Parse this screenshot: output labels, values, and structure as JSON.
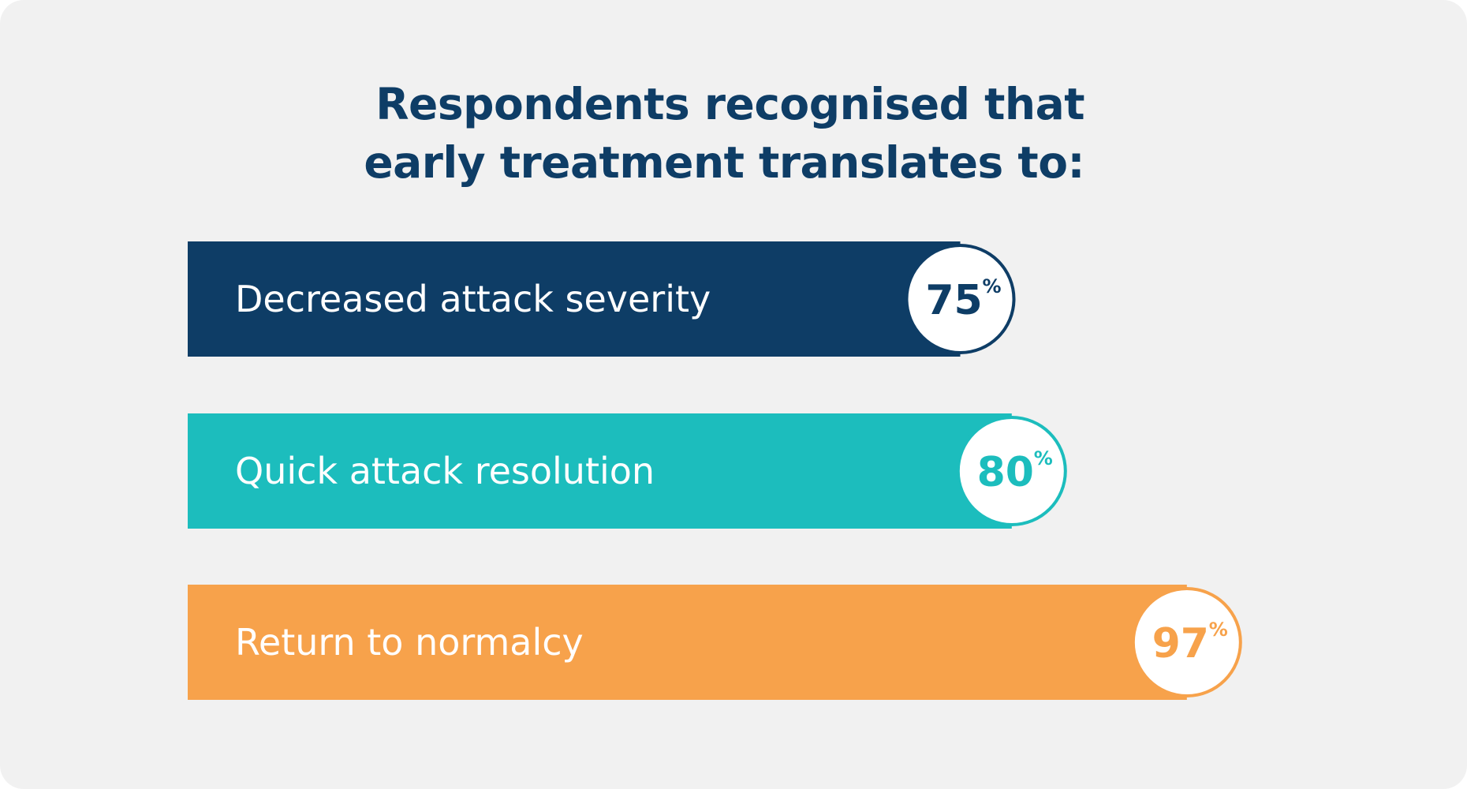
{
  "chart_data": {
    "type": "bar",
    "orientation": "horizontal",
    "title": "Respondents recognised that early treatment translates to:",
    "title_lines": [
      "Respondents recognised that",
      "early treatment translates to:"
    ],
    "categories": [
      "Decreased attack severity",
      "Quick attack resolution",
      "Return to normalcy"
    ],
    "values": [
      75,
      80,
      97
    ],
    "value_labels": [
      "75",
      "80",
      "97"
    ],
    "unit": "%",
    "colors": [
      "#0e3d66",
      "#1cbdbd",
      "#f7a24b"
    ],
    "xlim": [
      0,
      100
    ],
    "grid": false,
    "legend": "none"
  }
}
